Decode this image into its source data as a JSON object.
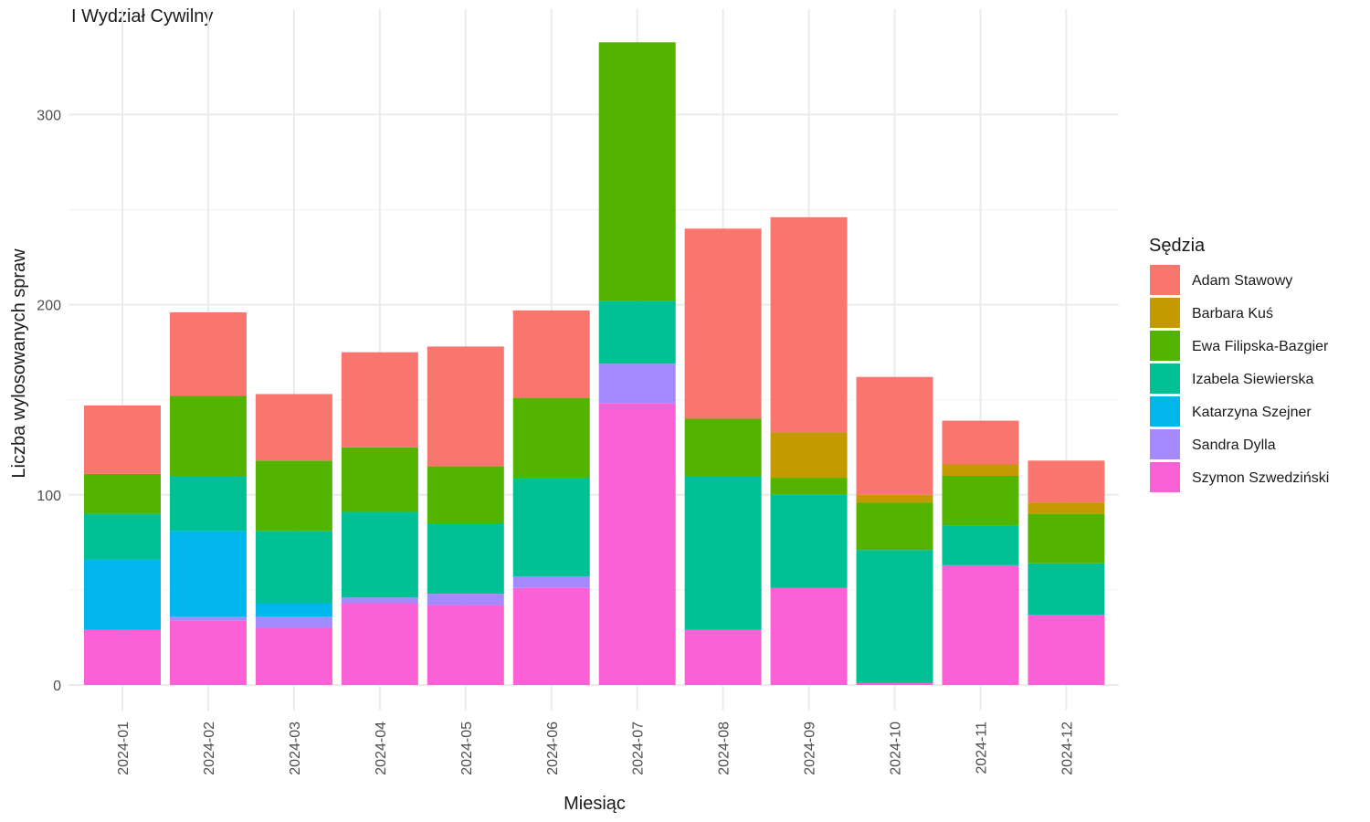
{
  "chart_data": {
    "type": "bar",
    "stacked": true,
    "title": "I Wydział Cywilny",
    "xlabel": "Miesiąc",
    "ylabel": "Liczba wylosowanych spraw",
    "ylim": [
      0,
      345
    ],
    "yticks": [
      0,
      100,
      200,
      300
    ],
    "grid": true,
    "legend_title": "Sędzia",
    "legend_position": "right",
    "categories": [
      "2024-01",
      "2024-02",
      "2024-03",
      "2024-04",
      "2024-05",
      "2024-06",
      "2024-07",
      "2024-08",
      "2024-09",
      "2024-10",
      "2024-11",
      "2024-12"
    ],
    "series": [
      {
        "name": "Adam Stawowy",
        "color": "#F8766D",
        "values": [
          36,
          44,
          35,
          50,
          63,
          46,
          0,
          100,
          113,
          62,
          23,
          22
        ]
      },
      {
        "name": "Barbara Kuś",
        "color": "#C49A00",
        "values": [
          0,
          0,
          0,
          0,
          0,
          0,
          0,
          0,
          24,
          4,
          6,
          6
        ]
      },
      {
        "name": "Ewa Filipska-Bazgier",
        "color": "#53B400",
        "values": [
          21,
          42,
          37,
          34,
          30,
          42,
          136,
          30,
          9,
          25,
          26,
          26
        ]
      },
      {
        "name": "Izabela Siewierska",
        "color": "#00C094",
        "values": [
          24,
          29,
          38,
          45,
          37,
          52,
          33,
          81,
          49,
          70,
          21,
          27
        ]
      },
      {
        "name": "Katarzyna Szejner",
        "color": "#00B6EB",
        "values": [
          37,
          45,
          7,
          0,
          0,
          0,
          0,
          0,
          0,
          0,
          0,
          0
        ]
      },
      {
        "name": "Sandra Dylla",
        "color": "#A58AFF",
        "values": [
          0,
          2,
          6,
          3,
          6,
          6,
          21,
          0,
          0,
          0,
          0,
          0
        ]
      },
      {
        "name": "Szymon Szwedziński",
        "color": "#FB61D7",
        "values": [
          29,
          34,
          30,
          43,
          42,
          51,
          148,
          29,
          51,
          1,
          63,
          37
        ]
      }
    ]
  }
}
